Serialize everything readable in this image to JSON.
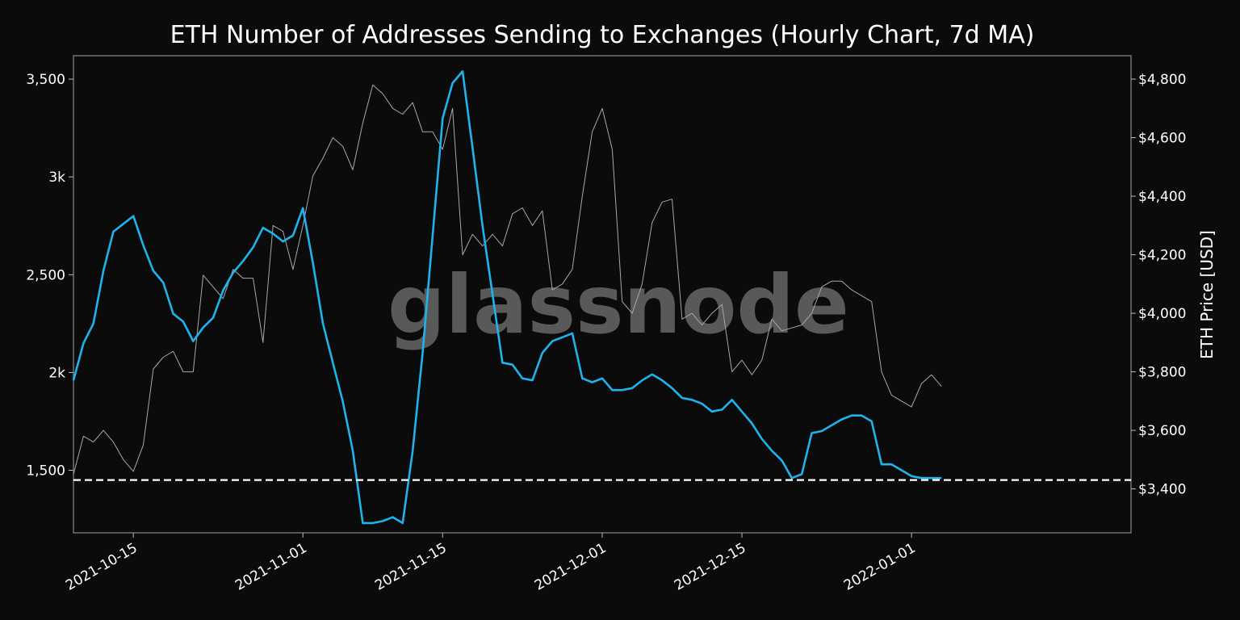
{
  "chart_data": {
    "type": "line",
    "title": "ETH Number of Addresses Sending to Exchanges (Hourly Chart, 7d MA)",
    "xlabel": "",
    "ylabel_left": "",
    "ylabel_right": "ETH Price [USD]",
    "watermark": "glassnode",
    "x_range": [
      "2021-10-09",
      "2022-01-23"
    ],
    "x_ticks": [
      "2021-10-15",
      "2021-11-01",
      "2021-11-15",
      "2021-12-01",
      "2021-12-15",
      "2022-01-01"
    ],
    "ylim_left": [
      1180,
      3620
    ],
    "yticks_left": [
      {
        "value": 1500,
        "label": "1,500"
      },
      {
        "value": 2000,
        "label": "2k"
      },
      {
        "value": 2500,
        "label": "2,500"
      },
      {
        "value": 3000,
        "label": "3k"
      },
      {
        "value": 3500,
        "label": "3,500"
      }
    ],
    "ylim_right": [
      3250,
      4880
    ],
    "yticks_right": [
      {
        "value": 3400,
        "label": "$3,400"
      },
      {
        "value": 3600,
        "label": "$3,600"
      },
      {
        "value": 3800,
        "label": "$3,800"
      },
      {
        "value": 4000,
        "label": "$4,000"
      },
      {
        "value": 4200,
        "label": "$4,200"
      },
      {
        "value": 4400,
        "label": "$4,400"
      },
      {
        "value": 4600,
        "label": "$4,600"
      },
      {
        "value": 4800,
        "label": "$4,800"
      }
    ],
    "threshold": {
      "value": 1450,
      "style": "dashed"
    },
    "series": [
      {
        "axis": "left",
        "color": "#1fb3ec",
        "x": [
          "2021-10-09",
          "2021-10-10",
          "2021-10-11",
          "2021-10-12",
          "2021-10-13",
          "2021-10-14",
          "2021-10-15",
          "2021-10-16",
          "2021-10-17",
          "2021-10-18",
          "2021-10-19",
          "2021-10-20",
          "2021-10-21",
          "2021-10-22",
          "2021-10-23",
          "2021-10-24",
          "2021-10-25",
          "2021-10-26",
          "2021-10-27",
          "2021-10-28",
          "2021-10-29",
          "2021-10-30",
          "2021-10-31",
          "2021-11-01",
          "2021-11-02",
          "2021-11-03",
          "2021-11-04",
          "2021-11-05",
          "2021-11-06",
          "2021-11-07",
          "2021-11-08",
          "2021-11-09",
          "2021-11-10",
          "2021-11-11",
          "2021-11-12",
          "2021-11-13",
          "2021-11-14",
          "2021-11-15",
          "2021-11-16",
          "2021-11-17",
          "2021-11-18",
          "2021-11-19",
          "2021-11-20",
          "2021-11-21",
          "2021-11-22",
          "2021-11-23",
          "2021-11-24",
          "2021-11-25",
          "2021-11-26",
          "2021-11-27",
          "2021-11-28",
          "2021-11-29",
          "2021-11-30",
          "2021-12-01",
          "2021-12-02",
          "2021-12-03",
          "2021-12-04",
          "2021-12-05",
          "2021-12-06",
          "2021-12-07",
          "2021-12-08",
          "2021-12-09",
          "2021-12-10",
          "2021-12-11",
          "2021-12-12",
          "2021-12-13",
          "2021-12-14",
          "2021-12-15",
          "2021-12-16",
          "2021-12-17",
          "2021-12-18",
          "2021-12-19",
          "2021-12-20",
          "2021-12-21",
          "2021-12-22",
          "2021-12-23",
          "2021-12-24",
          "2021-12-25",
          "2021-12-26",
          "2021-12-27",
          "2021-12-28",
          "2021-12-29",
          "2021-12-30",
          "2021-12-31",
          "2022-01-01",
          "2022-01-02",
          "2022-01-03",
          "2022-01-04"
        ],
        "values": [
          1960,
          2150,
          2250,
          2520,
          2720,
          2760,
          2800,
          2650,
          2520,
          2460,
          2300,
          2260,
          2160,
          2230,
          2280,
          2420,
          2510,
          2570,
          2640,
          2740,
          2710,
          2670,
          2700,
          2840,
          2560,
          2250,
          2050,
          1850,
          1600,
          1230,
          1230,
          1240,
          1260,
          1230,
          1600,
          2100,
          2700,
          3300,
          3480,
          3540,
          3150,
          2750,
          2400,
          2050,
          2040,
          1970,
          1960,
          2100,
          2160,
          2180,
          2200,
          1970,
          1950,
          1970,
          1910,
          1910,
          1920,
          1960,
          1990,
          1960,
          1920,
          1870,
          1860,
          1840,
          1800,
          1810,
          1860,
          1800,
          1740,
          1660,
          1600,
          1550,
          1460,
          1480,
          1690,
          1700,
          1730,
          1760,
          1780,
          1780,
          1750,
          1530,
          1530,
          1500,
          1470,
          1460,
          1460,
          1460
        ]
      },
      {
        "axis": "right",
        "color": "#a8a8a8",
        "x": [
          "2021-10-09",
          "2021-10-10",
          "2021-10-11",
          "2021-10-12",
          "2021-10-13",
          "2021-10-14",
          "2021-10-15",
          "2021-10-16",
          "2021-10-17",
          "2021-10-18",
          "2021-10-19",
          "2021-10-20",
          "2021-10-21",
          "2021-10-22",
          "2021-10-23",
          "2021-10-24",
          "2021-10-25",
          "2021-10-26",
          "2021-10-27",
          "2021-10-28",
          "2021-10-29",
          "2021-10-30",
          "2021-10-31",
          "2021-11-01",
          "2021-11-02",
          "2021-11-03",
          "2021-11-04",
          "2021-11-05",
          "2021-11-06",
          "2021-11-07",
          "2021-11-08",
          "2021-11-09",
          "2021-11-10",
          "2021-11-11",
          "2021-11-12",
          "2021-11-13",
          "2021-11-14",
          "2021-11-15",
          "2021-11-16",
          "2021-11-17",
          "2021-11-18",
          "2021-11-19",
          "2021-11-20",
          "2021-11-21",
          "2021-11-22",
          "2021-11-23",
          "2021-11-24",
          "2021-11-25",
          "2021-11-26",
          "2021-11-27",
          "2021-11-28",
          "2021-11-29",
          "2021-11-30",
          "2021-12-01",
          "2021-12-02",
          "2021-12-03",
          "2021-12-04",
          "2021-12-05",
          "2021-12-06",
          "2021-12-07",
          "2021-12-08",
          "2021-12-09",
          "2021-12-10",
          "2021-12-11",
          "2021-12-12",
          "2021-12-13",
          "2021-12-14",
          "2021-12-15",
          "2021-12-16",
          "2021-12-17",
          "2021-12-18",
          "2021-12-19",
          "2021-12-20",
          "2021-12-21",
          "2021-12-22",
          "2021-12-23",
          "2021-12-24",
          "2021-12-25",
          "2021-12-26",
          "2021-12-27",
          "2021-12-28",
          "2021-12-29",
          "2021-12-30",
          "2021-12-31",
          "2022-01-01",
          "2022-01-02",
          "2022-01-03",
          "2022-01-04"
        ],
        "values": [
          3450,
          3580,
          3560,
          3600,
          3560,
          3500,
          3460,
          3550,
          3810,
          3850,
          3870,
          3800,
          3800,
          4130,
          4090,
          4050,
          4150,
          4120,
          4120,
          3900,
          4300,
          4280,
          4150,
          4300,
          4470,
          4530,
          4600,
          4570,
          4490,
          4650,
          4780,
          4750,
          4700,
          4680,
          4720,
          4620,
          4620,
          4560,
          4700,
          4200,
          4270,
          4230,
          4270,
          4230,
          4340,
          4360,
          4300,
          4350,
          4080,
          4100,
          4150,
          4400,
          4620,
          4700,
          4560,
          4040,
          4000,
          4100,
          4310,
          4380,
          4390,
          3980,
          4000,
          3960,
          4000,
          4030,
          3800,
          3840,
          3790,
          3840,
          3980,
          3940,
          3950,
          3960,
          4000,
          4090,
          4110,
          4110,
          4080,
          4060,
          4040,
          3800,
          3720,
          3700,
          3680,
          3760,
          3790,
          3750
        ]
      }
    ]
  }
}
